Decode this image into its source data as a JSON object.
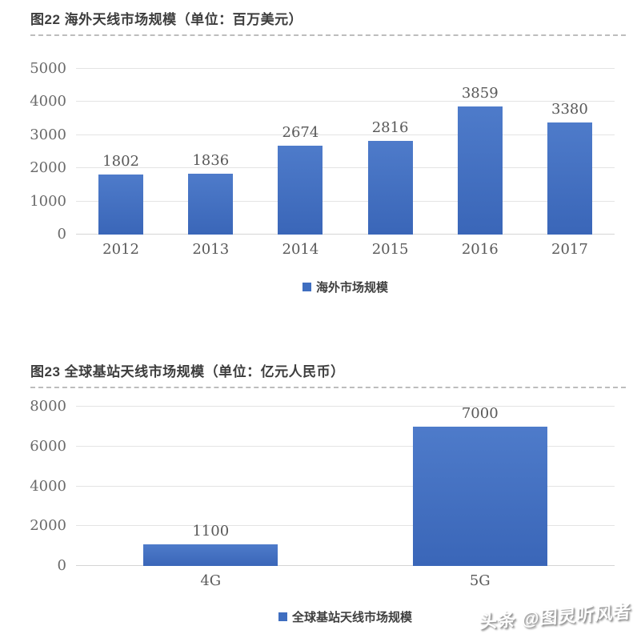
{
  "chart_data": [
    {
      "type": "bar",
      "title": "图22 海外天线市场规模（单位：百万美元）",
      "legend": "海外市场规模",
      "legend_position": "bottom",
      "categories": [
        "2012",
        "2013",
        "2014",
        "2015",
        "2016",
        "2017"
      ],
      "values": [
        1802,
        1836,
        2674,
        2816,
        3859,
        3380
      ],
      "ylim": [
        0,
        5000
      ],
      "yticks": [
        0,
        1000,
        2000,
        3000,
        4000,
        5000
      ],
      "grid": true,
      "bar_color_top": "#4e7bca",
      "bar_color_bottom": "#3a66b8"
    },
    {
      "type": "bar",
      "title": "图23 全球基站天线市场规模（单位：亿元人民币）",
      "legend": "全球基站天线市场规模",
      "legend_position": "bottom",
      "categories": [
        "4G",
        "5G"
      ],
      "values": [
        1100,
        7000
      ],
      "ylim": [
        0,
        8000
      ],
      "yticks": [
        0,
        2000,
        4000,
        6000,
        8000
      ],
      "grid": true,
      "bar_color_top": "#4e7bca",
      "bar_color_bottom": "#3a66b8"
    }
  ],
  "watermark": {
    "text": "头条 @图灵听风者"
  },
  "colors": {
    "bar_blue": "#4472c4",
    "legend_swatch": "#3f6ec0",
    "gridline": "#e4e4e4",
    "title_text": "#3d3d3d",
    "axis_text": "#6a6a6a"
  }
}
